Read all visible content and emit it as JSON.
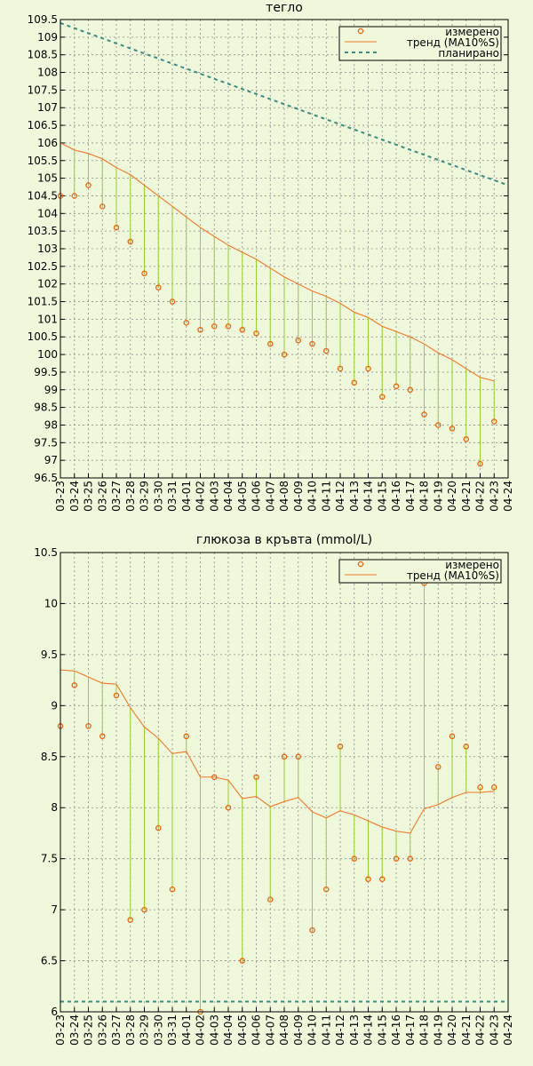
{
  "chart_data": [
    {
      "type": "scatter",
      "title": "тегло",
      "ylim": [
        96.5,
        109.5
      ],
      "y_ticks": [
        96.5,
        97,
        97.5,
        98,
        98.5,
        99,
        99.5,
        100,
        100.5,
        101,
        101.5,
        102,
        102.5,
        103,
        103.5,
        104,
        104.5,
        105,
        105.5,
        106,
        106.5,
        107,
        107.5,
        108,
        108.5,
        109,
        109.5
      ],
      "x_ticks": [
        "03-23",
        "03-24",
        "03-25",
        "03-26",
        "03-27",
        "03-28",
        "03-29",
        "03-30",
        "03-31",
        "04-01",
        "04-02",
        "04-03",
        "04-04",
        "04-05",
        "04-06",
        "04-07",
        "04-08",
        "04-09",
        "04-10",
        "04-11",
        "04-12",
        "04-13",
        "04-14",
        "04-15",
        "04-16",
        "04-17",
        "04-18",
        "04-19",
        "04-20",
        "04-21",
        "04-22",
        "04-23",
        "04-24"
      ],
      "grid": true,
      "legend_position": "top-right",
      "measured_color": "#e8620c",
      "trend_color": "#f07828",
      "stem_color": "#9acd32",
      "plan_color": "#3c8c82",
      "series": [
        {
          "name": "измерено",
          "style": "points",
          "x": [
            "03-23",
            "03-24",
            "03-25",
            "03-26",
            "03-27",
            "03-28",
            "03-29",
            "03-30",
            "03-31",
            "04-01",
            "04-02",
            "04-03",
            "04-04",
            "04-05",
            "04-06",
            "04-07",
            "04-08",
            "04-09",
            "04-10",
            "04-11",
            "04-12",
            "04-13",
            "04-14",
            "04-15",
            "04-16",
            "04-17",
            "04-18",
            "04-19",
            "04-20",
            "04-21",
            "04-22",
            "04-23"
          ],
          "values": [
            104.5,
            104.5,
            104.8,
            104.2,
            103.6,
            103.2,
            102.3,
            101.9,
            101.5,
            100.9,
            100.7,
            100.8,
            100.8,
            100.7,
            100.6,
            100.3,
            100.0,
            100.4,
            100.3,
            100.1,
            99.6,
            99.2,
            99.6,
            98.8,
            99.1,
            99.0,
            98.3,
            98.0,
            97.9,
            97.6,
            96.9,
            98.1
          ]
        },
        {
          "name": "тренд (MA10%S)",
          "style": "line",
          "x": [
            "03-23",
            "03-24",
            "03-25",
            "03-26",
            "03-27",
            "03-28",
            "03-29",
            "03-30",
            "03-31",
            "04-01",
            "04-02",
            "04-03",
            "04-04",
            "04-05",
            "04-06",
            "04-07",
            "04-08",
            "04-09",
            "04-10",
            "04-11",
            "04-12",
            "04-13",
            "04-14",
            "04-15",
            "04-16",
            "04-17",
            "04-18",
            "04-19",
            "04-20",
            "04-21",
            "04-22",
            "04-23"
          ],
          "values": [
            106.0,
            105.8,
            105.7,
            105.55,
            105.3,
            105.1,
            104.8,
            104.5,
            104.2,
            103.9,
            103.6,
            103.35,
            103.1,
            102.9,
            102.7,
            102.45,
            102.2,
            102.0,
            101.8,
            101.65,
            101.45,
            101.2,
            101.05,
            100.8,
            100.65,
            100.5,
            100.3,
            100.05,
            99.85,
            99.6,
            99.35,
            99.25
          ]
        },
        {
          "name": "планирано",
          "style": "dashed",
          "x": [
            "03-23",
            "04-24"
          ],
          "values": [
            109.4,
            104.8
          ]
        }
      ]
    },
    {
      "type": "scatter",
      "title": "глюкоза в кръвта (mmol/L)",
      "ylim": [
        6,
        10.5
      ],
      "y_ticks": [
        6,
        6.5,
        7,
        7.5,
        8,
        8.5,
        9,
        9.5,
        10,
        10.5
      ],
      "x_ticks": [
        "03-23",
        "03-24",
        "03-25",
        "03-26",
        "03-27",
        "03-28",
        "03-29",
        "03-30",
        "03-31",
        "04-01",
        "04-02",
        "04-03",
        "04-04",
        "04-05",
        "04-06",
        "04-07",
        "04-08",
        "04-09",
        "04-10",
        "04-11",
        "04-12",
        "04-13",
        "04-14",
        "04-15",
        "04-16",
        "04-17",
        "04-18",
        "04-19",
        "04-20",
        "04-21",
        "04-22",
        "04-23",
        "04-24"
      ],
      "grid": true,
      "legend_position": "top-right",
      "reference_line": 6.1,
      "measured_color": "#e8620c",
      "trend_color": "#f07828",
      "stem_color": "#9acd32",
      "ref_color": "#3c8c82",
      "series": [
        {
          "name": "измерено",
          "style": "points",
          "x": [
            "03-23",
            "03-24",
            "03-25",
            "03-26",
            "03-27",
            "03-28",
            "03-29",
            "03-30",
            "03-31",
            "04-01",
            "04-02",
            "04-03",
            "04-04",
            "04-05",
            "04-06",
            "04-07",
            "04-08",
            "04-09",
            "04-10",
            "04-11",
            "04-12",
            "04-13",
            "04-14",
            "04-15",
            "04-16",
            "04-17",
            "04-18",
            "04-19",
            "04-20",
            "04-21",
            "04-22",
            "04-23"
          ],
          "values": [
            8.8,
            9.2,
            8.8,
            8.7,
            9.1,
            6.9,
            7.0,
            7.8,
            7.2,
            8.7,
            6.0,
            8.3,
            8.0,
            6.5,
            8.3,
            7.1,
            8.5,
            8.5,
            6.8,
            7.2,
            8.6,
            7.5,
            7.3,
            7.3,
            7.5,
            7.5,
            10.2,
            8.4,
            8.7,
            8.6,
            8.2,
            8.2
          ]
        },
        {
          "name": "тренд (MA10%S)",
          "style": "line",
          "x": [
            "03-23",
            "03-24",
            "03-25",
            "03-26",
            "03-27",
            "03-28",
            "03-29",
            "03-30",
            "03-31",
            "04-01",
            "04-02",
            "04-03",
            "04-04",
            "04-05",
            "04-06",
            "04-07",
            "04-08",
            "04-09",
            "04-10",
            "04-11",
            "04-12",
            "04-13",
            "04-14",
            "04-15",
            "04-16",
            "04-17",
            "04-18",
            "04-19",
            "04-20",
            "04-21",
            "04-22",
            "04-23"
          ],
          "values": [
            9.35,
            9.34,
            9.28,
            9.22,
            9.21,
            8.98,
            8.79,
            8.68,
            8.53,
            8.55,
            8.3,
            8.3,
            8.27,
            8.09,
            8.11,
            8.01,
            8.06,
            8.1,
            7.96,
            7.9,
            7.97,
            7.93,
            7.87,
            7.81,
            7.77,
            7.75,
            7.99,
            8.03,
            8.1,
            8.15,
            8.15,
            8.16
          ]
        }
      ]
    }
  ]
}
